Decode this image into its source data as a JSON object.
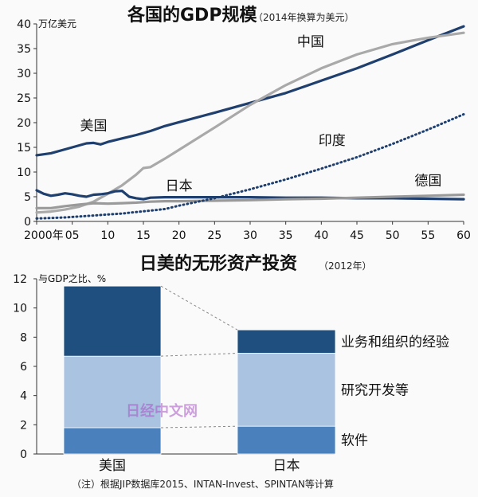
{
  "chart_data": [
    {
      "type": "line",
      "title": "各国的GDP规模",
      "subtitle": "（2014年换算为美元）",
      "ylabel": "万亿美元",
      "xlabel": "",
      "xlim": [
        0,
        60
      ],
      "ylim": [
        0,
        40
      ],
      "x_ticks": [
        "2000年",
        "05",
        "10",
        "15",
        "20",
        "25",
        "30",
        "35",
        "40",
        "45",
        "50",
        "55",
        "60"
      ],
      "y_ticks": [
        "0",
        "5",
        "10",
        "15",
        "20",
        "25",
        "30",
        "35",
        "40"
      ],
      "grid": false,
      "series": [
        {
          "name": "美国",
          "color": "#1f3f6e",
          "style": "solid",
          "x": [
            0,
            2,
            4,
            6,
            7,
            8,
            9,
            10,
            12,
            14,
            16,
            18,
            20,
            25,
            30,
            35,
            40,
            45,
            50,
            55,
            60
          ],
          "y": [
            13.4,
            13.8,
            14.6,
            15.4,
            15.8,
            15.9,
            15.6,
            16.1,
            16.8,
            17.5,
            18.3,
            19.3,
            20.1,
            22.0,
            24.0,
            26.0,
            28.5,
            31.0,
            33.8,
            36.7,
            39.5
          ]
        },
        {
          "name": "中国",
          "color": "#a9a9a9",
          "style": "solid",
          "x": [
            0,
            2,
            4,
            6,
            8,
            10,
            12,
            14,
            15,
            16,
            18,
            20,
            25,
            30,
            35,
            40,
            45,
            50,
            55,
            60
          ],
          "y": [
            1.8,
            2.0,
            2.4,
            3.0,
            4.0,
            5.6,
            7.3,
            9.5,
            10.8,
            11.0,
            12.7,
            14.5,
            19.0,
            23.6,
            27.6,
            31.0,
            33.8,
            35.9,
            37.2,
            38.2
          ]
        },
        {
          "name": "日本",
          "color": "#1f3f6e",
          "style": "solid",
          "x": [
            0,
            1,
            2,
            3,
            4,
            5,
            6,
            7,
            8,
            9,
            10,
            11,
            12,
            13,
            14,
            15,
            16,
            18,
            20,
            25,
            30,
            35,
            40,
            45,
            50,
            55,
            60
          ],
          "y": [
            6.3,
            5.6,
            5.2,
            5.4,
            5.7,
            5.5,
            5.2,
            5.0,
            5.4,
            5.5,
            5.7,
            6.1,
            6.2,
            5.0,
            4.7,
            4.5,
            4.8,
            4.9,
            4.9,
            4.9,
            4.9,
            4.8,
            4.8,
            4.7,
            4.7,
            4.6,
            4.5
          ]
        },
        {
          "name": "德国",
          "color": "#9a9a9a",
          "style": "solid",
          "x": [
            0,
            2,
            4,
            6,
            8,
            10,
            12,
            14,
            16,
            18,
            20,
            25,
            30,
            35,
            40,
            45,
            50,
            55,
            60
          ],
          "y": [
            2.7,
            2.7,
            3.1,
            3.4,
            3.7,
            3.6,
            3.7,
            3.8,
            4.0,
            4.1,
            4.1,
            4.2,
            4.3,
            4.5,
            4.6,
            4.8,
            5.0,
            5.2,
            5.4
          ]
        },
        {
          "name": "印度",
          "color": "#1f3f6e",
          "style": "dotted",
          "x": [
            0,
            2,
            4,
            6,
            8,
            10,
            12,
            14,
            16,
            18,
            20,
            25,
            30,
            35,
            40,
            45,
            50,
            55,
            60
          ],
          "y": [
            0.6,
            0.7,
            0.8,
            1.0,
            1.2,
            1.4,
            1.6,
            1.9,
            2.2,
            2.5,
            3.2,
            4.7,
            6.5,
            8.5,
            10.7,
            13.0,
            15.7,
            18.6,
            21.7
          ]
        }
      ]
    },
    {
      "type": "bar",
      "stacked": true,
      "title": "日美的无形资产投资",
      "subtitle": "（2012年）",
      "ylabel": "与GDP之比、%",
      "ylim": [
        0,
        12
      ],
      "y_ticks": [
        "0",
        "2",
        "4",
        "6",
        "8",
        "10",
        "12"
      ],
      "categories": [
        "美国",
        "日本"
      ],
      "series": [
        {
          "name": "软件",
          "color": "#4a80bb",
          "values": [
            1.8,
            1.9
          ]
        },
        {
          "name": "研究开发等",
          "color": "#a9c3e1",
          "values": [
            4.9,
            5.0
          ]
        },
        {
          "name": "业务和组织的经验",
          "color": "#1f4f7e",
          "values": [
            4.8,
            1.6
          ]
        }
      ]
    }
  ],
  "note": "（注）根据JIP数据库2015、INTAN-Invest、SPINTAN等计算",
  "watermark": "日经中文网"
}
